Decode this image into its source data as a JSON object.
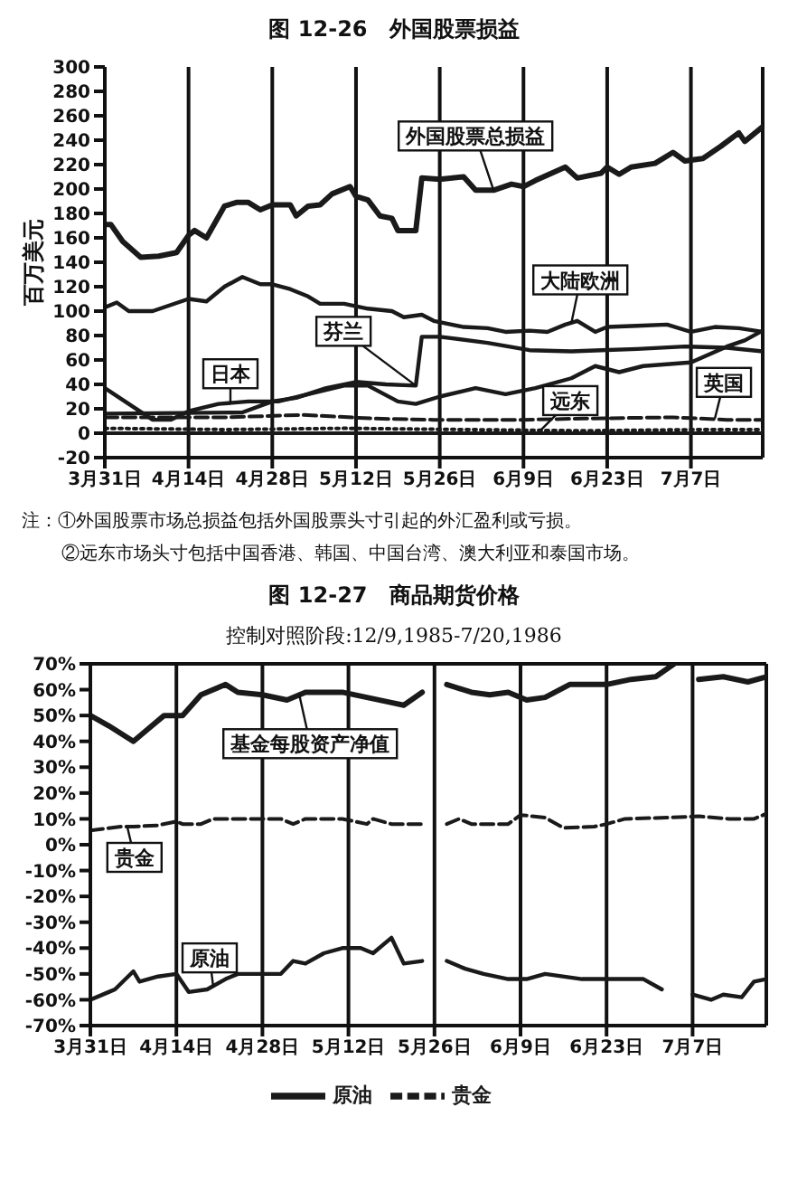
{
  "chart_data": [
    {
      "type": "line",
      "title": "图 12-26　外国股票损益",
      "ylabel": "百万美元",
      "xlim": [
        "--03-31",
        "--07-19"
      ],
      "xticks": [
        {
          "value": "--03-31",
          "label": "3月31日"
        },
        {
          "value": "--04-14",
          "label": "4月14日"
        },
        {
          "value": "--04-28",
          "label": "4月28日"
        },
        {
          "value": "--05-12",
          "label": "5月12日"
        },
        {
          "value": "--05-26",
          "label": "5月26日"
        },
        {
          "value": "--06-09",
          "label": "6月9日"
        },
        {
          "value": "--06-23",
          "label": "6月23日"
        },
        {
          "value": "--07-07",
          "label": "7月7日"
        }
      ],
      "ylim": [
        -20,
        300
      ],
      "yticks": [
        -20,
        0,
        20,
        40,
        60,
        80,
        100,
        120,
        140,
        160,
        180,
        200,
        220,
        240,
        260,
        280,
        300
      ],
      "grid": "x",
      "marker": "none",
      "ref_lines": [
        {
          "axis": "y",
          "value": 0,
          "color": "#1a1a1a"
        }
      ],
      "series": [
        {
          "color": "#1a1a1a",
          "x": [
            "--03-31",
            "--04-01",
            "--04-03",
            "--04-06",
            "--04-09",
            "--04-12",
            "--04-14",
            "--04-15",
            "--04-17",
            "--04-20",
            "--04-22",
            "--04-24",
            "--04-26",
            "--04-28",
            "--05-01",
            "--05-02",
            "--05-04",
            "--05-06",
            "--05-08",
            "--05-11",
            "--05-12",
            "--05-14",
            "--05-16",
            "--05-18",
            "--05-19",
            "--05-22",
            "--05-23",
            "--05-26",
            "--05-30",
            "--06-01",
            "--06-04",
            "--06-07",
            "--06-09",
            "--06-11",
            "--06-16",
            "--06-18",
            "--06-22",
            "--06-23",
            "--06-25",
            "--06-27",
            "--07-01",
            "--07-04",
            "--07-06",
            "--07-09",
            "--07-12",
            "--07-15",
            "--07-16",
            "--07-19"
          ],
          "values": [
            171,
            171,
            157,
            144,
            145,
            148,
            162,
            166,
            160,
            186,
            189,
            189,
            183,
            187,
            187,
            178,
            186,
            187,
            196,
            202,
            194,
            191,
            178,
            176,
            166,
            166,
            209,
            208,
            210,
            199,
            199,
            204,
            202,
            207,
            218,
            209,
            213,
            218,
            212,
            218,
            221,
            230,
            223,
            225,
            235,
            246,
            239,
            251
          ]
        },
        {
          "color": "#1a1a1a",
          "x": [
            "--03-31",
            "--04-02",
            "--04-04",
            "--04-08",
            "--04-11",
            "--04-14",
            "--04-17",
            "--04-20",
            "--04-23",
            "--04-26",
            "--04-28",
            "--05-01",
            "--05-04",
            "--05-06",
            "--05-10",
            "--05-14",
            "--05-18",
            "--05-20",
            "--05-23",
            "--05-25",
            "--05-30",
            "--06-03",
            "--06-06",
            "--06-10",
            "--06-13",
            "--06-16",
            "--06-18",
            "--06-21",
            "--06-23",
            "--06-28",
            "--07-03",
            "--07-07",
            "--07-11",
            "--07-15",
            "--07-19"
          ],
          "values": [
            103,
            107,
            100,
            100,
            105,
            110,
            108,
            120,
            128,
            122,
            122,
            118,
            112,
            106,
            106,
            102,
            100,
            95,
            97,
            92,
            87,
            86,
            83,
            84,
            83,
            89,
            92,
            83,
            87,
            88,
            89,
            83,
            87,
            86,
            83
          ]
        },
        {
          "color": "#1a1a1a",
          "x": [
            "--03-31",
            "--04-23",
            "--04-28",
            "--05-02",
            "--05-07",
            "--05-12",
            "--05-17",
            "--05-22",
            "--05-23",
            "--05-26",
            "--06-03",
            "--06-10",
            "--06-17",
            "--06-22",
            "--06-28",
            "--07-06",
            "--07-13",
            "--07-19"
          ],
          "values": [
            16,
            17,
            26,
            29,
            37,
            42,
            40,
            39,
            79,
            79,
            74,
            68,
            67,
            68,
            69,
            71,
            70,
            67
          ]
        },
        {
          "color": "#1a1a1a",
          "x": [
            "--03-31",
            "--04-08",
            "--04-11",
            "--04-14",
            "--04-19",
            "--04-24",
            "--04-29",
            "--05-04",
            "--05-10",
            "--05-14",
            "--05-19",
            "--05-22",
            "--05-26",
            "--06-01",
            "--06-06",
            "--06-11",
            "--06-17",
            "--06-21",
            "--06-25",
            "--06-29",
            "--07-07",
            "--07-13",
            "--07-16",
            "--07-19"
          ],
          "values": [
            37,
            11,
            11,
            18,
            24,
            26,
            26,
            32,
            39,
            39,
            26,
            24,
            30,
            37,
            32,
            37,
            45,
            55,
            50,
            55,
            58,
            71,
            76,
            84
          ]
        },
        {
          "color": "#1a1a1a",
          "line_style": "dotted",
          "x": [
            "--03-31",
            "--04-20",
            "--05-10",
            "--05-30",
            "--06-19",
            "--07-09",
            "--07-19"
          ],
          "values": [
            4,
            3,
            4,
            3,
            2,
            3,
            3
          ]
        },
        {
          "color": "#1a1a1a",
          "line_style": "dashed",
          "x": [
            "--03-31",
            "--04-20",
            "--05-03",
            "--05-15",
            "--05-25",
            "--06-09",
            "--06-19",
            "--07-04",
            "--07-13",
            "--07-19"
          ],
          "values": [
            13,
            13,
            15,
            12,
            11,
            11,
            12,
            13,
            11,
            11
          ]
        }
      ],
      "annotations": [
        {
          "text": "外国股票总损益",
          "x": "--06-04",
          "y": 199
        },
        {
          "text": "大陆欧洲",
          "x": "--06-17",
          "y": 90
        },
        {
          "text": "芬兰",
          "x": "--05-22",
          "y": 39
        },
        {
          "text": "日本",
          "x": "--04-21",
          "y": 25
        },
        {
          "text": "远东",
          "x": "--06-12",
          "y": 3
        },
        {
          "text": "英国",
          "x": "--07-11",
          "y": 12
        },
        "注：①外国股票市场总损益包括外国股票头寸引起的外汇盈利或亏损。",
        "②远东市场头寸包括中国香港、韩国、中国台湾、澳大利亚和泰国市场。"
      ]
    },
    {
      "type": "line",
      "title": "图 12-27　商品期货价格",
      "subtitle": "控制对照阶段:12/9,1985-7/20,1986",
      "xlim": [
        "--03-31",
        "--07-19"
      ],
      "xticks": [
        {
          "value": "--03-31",
          "label": "3月31日"
        },
        {
          "value": "--04-14",
          "label": "4月14日"
        },
        {
          "value": "--04-28",
          "label": "4月28日"
        },
        {
          "value": "--05-12",
          "label": "5月12日"
        },
        {
          "value": "--05-26",
          "label": "5月26日"
        },
        {
          "value": "--06-09",
          "label": "6月9日"
        },
        {
          "value": "--06-23",
          "label": "6月23日"
        },
        {
          "value": "--07-07",
          "label": "7月7日"
        }
      ],
      "ylim": [
        -70,
        70
      ],
      "yticks": [
        {
          "value": -70,
          "label": "-70%"
        },
        {
          "value": -60,
          "label": "-60%"
        },
        {
          "value": -50,
          "label": "-50%"
        },
        {
          "value": -40,
          "label": "-40%"
        },
        {
          "value": -30,
          "label": "-30%"
        },
        {
          "value": -20,
          "label": "-20%"
        },
        {
          "value": -10,
          "label": "-10%"
        },
        {
          "value": 0,
          "label": "0%"
        },
        {
          "value": 10,
          "label": "10%"
        },
        {
          "value": 20,
          "label": "20%"
        },
        {
          "value": 30,
          "label": "30%"
        },
        {
          "value": 40,
          "label": "40%"
        },
        {
          "value": 50,
          "label": "50%"
        },
        {
          "value": 60,
          "label": "60%"
        },
        {
          "value": 70,
          "label": "70%"
        }
      ],
      "grid": true,
      "legend": "bottom",
      "marker": "none",
      "series": [
        {
          "color": "#1a1a1a",
          "x": [
            "--03-31",
            "--04-03",
            "--04-07",
            "--04-09",
            "--04-12",
            "--04-15",
            "--04-18",
            "--04-22",
            "--04-24",
            "--04-28",
            "--05-02",
            "--05-05",
            "--05-11",
            "--05-15",
            "--05-19",
            "--05-21",
            "--05-24",
            "--05-26",
            "--05-28",
            "--06-01",
            "--06-04",
            "--06-07",
            "--06-10",
            "--06-13",
            "--06-17",
            "--06-23",
            "--06-27",
            "--07-01",
            "--07-04",
            "--07-06",
            "--07-08",
            "--07-12",
            "--07-16",
            "--07-19"
          ],
          "values": [
            50,
            46,
            40,
            44,
            50,
            50,
            58,
            62,
            59,
            58,
            56,
            59,
            59,
            57,
            55,
            54,
            59,
            null,
            62,
            59,
            58,
            59,
            56,
            57,
            62,
            62,
            64,
            65,
            70,
            null,
            64,
            65,
            63,
            65
          ]
        },
        {
          "name": "原油",
          "color": "#1a1a1a",
          "x": [
            "--03-31",
            "--04-03",
            "--04-04",
            "--04-07",
            "--04-08",
            "--04-11",
            "--04-14",
            "--04-16",
            "--04-19",
            "--04-22",
            "--04-24",
            "--04-28",
            "--05-01",
            "--05-03",
            "--05-05",
            "--05-08",
            "--05-11",
            "--05-14",
            "--05-16",
            "--05-19",
            "--05-21",
            "--05-24",
            "--05-26",
            "--05-28",
            "--05-31",
            "--06-03",
            "--06-07",
            "--06-10",
            "--06-13",
            "--06-19",
            "--06-23",
            "--06-29",
            "--07-02",
            "--07-04",
            "--07-07",
            "--07-10",
            "--07-12",
            "--07-15",
            "--07-17",
            "--07-19"
          ],
          "values": [
            -60,
            -57,
            -56,
            -49,
            -53,
            -51,
            -50,
            -57,
            -56,
            -52,
            -50,
            -50,
            -50,
            -45,
            -46,
            -42,
            -40,
            -40,
            -42,
            -36,
            -46,
            -45,
            null,
            -45,
            -48,
            -50,
            -52,
            -52,
            -50,
            -52,
            -52,
            -52,
            -56,
            null,
            -58,
            -60,
            -58,
            -59,
            -53,
            -52
          ]
        },
        {
          "name": "贵金",
          "color": "#1a1a1a",
          "line_style": "dashed",
          "x": [
            "--03-31",
            "--04-05",
            "--04-07",
            "--04-11",
            "--04-14",
            "--04-15",
            "--04-18",
            "--04-20",
            "--04-25",
            "--05-01",
            "--05-03",
            "--05-05",
            "--05-11",
            "--05-15",
            "--05-16",
            "--05-19",
            "--05-24",
            "--05-26",
            "--05-28",
            "--05-30",
            "--06-01",
            "--06-07",
            "--06-09",
            "--06-13",
            "--06-16",
            "--06-21",
            "--06-23",
            "--06-26",
            "--07-03",
            "--07-08",
            "--07-13",
            "--07-17",
            "--07-19"
          ],
          "values": [
            5.5,
            7,
            7,
            7.5,
            9,
            8,
            8,
            10,
            10,
            10,
            8,
            10,
            10,
            8,
            10,
            8,
            8,
            null,
            8,
            10,
            8,
            8,
            11.5,
            10.5,
            6.5,
            7,
            8,
            10,
            10.5,
            11,
            10,
            10,
            12
          ]
        }
      ],
      "annotations": [
        {
          "text": "基金每股资产净值",
          "x": "--05-04",
          "y": 58
        },
        {
          "text": "贵金",
          "x": "--04-06",
          "y": 7
        },
        {
          "text": "原油",
          "x": "--04-20",
          "y": -55
        }
      ]
    }
  ]
}
